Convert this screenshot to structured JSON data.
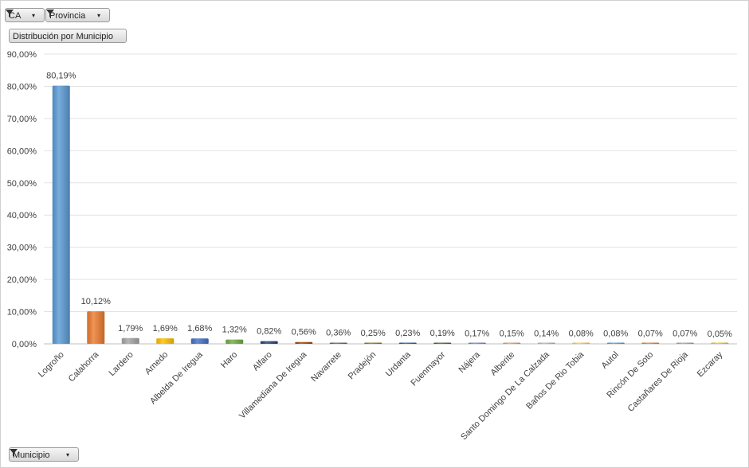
{
  "filters": {
    "ca_label": "CA",
    "provincia_label": "Provincia",
    "measure_label": "Distribución por Municipio",
    "axis_field_label": "Municipio"
  },
  "chart_data": {
    "type": "bar",
    "title": "",
    "xlabel": "",
    "ylabel": "",
    "ylim": [
      0,
      90
    ],
    "yticks": [
      "0,00%",
      "10,00%",
      "20,00%",
      "30,00%",
      "40,00%",
      "50,00%",
      "60,00%",
      "70,00%",
      "80,00%",
      "90,00%"
    ],
    "grid": true,
    "legend": "none",
    "categories": [
      "Logroño",
      "Calahorra",
      "Lardero",
      "Arnedo",
      "Albelda De Iregua",
      "Haro",
      "Alfaro",
      "Villamediana De Iregua",
      "Navarrete",
      "Pradejón",
      "Urdanta",
      "Fuenmayor",
      "Nájera",
      "Alberite",
      "Santo Domingo De La Calzada",
      "Baños De Rio Tobia",
      "Autol",
      "Rincón De Soto",
      "Castañares De Rioja",
      "Ezcaray"
    ],
    "values": [
      80.19,
      10.12,
      1.79,
      1.69,
      1.68,
      1.32,
      0.82,
      0.56,
      0.36,
      0.25,
      0.23,
      0.19,
      0.17,
      0.15,
      0.14,
      0.08,
      0.08,
      0.07,
      0.07,
      0.05
    ],
    "labels": [
      "80,19%",
      "10,12%",
      "1,79%",
      "1,69%",
      "1,68%",
      "1,32%",
      "0,82%",
      "0,56%",
      "0,36%",
      "0,25%",
      "0,23%",
      "0,19%",
      "0,17%",
      "0,15%",
      "0,14%",
      "0,08%",
      "0,08%",
      "0,07%",
      "0,07%",
      "0,05%"
    ],
    "colors": [
      "#5b9bd5",
      "#ed7d31",
      "#a5a5a5",
      "#ffc000",
      "#4472c4",
      "#70ad47",
      "#264478",
      "#9e480e",
      "#636363",
      "#997300",
      "#255e91",
      "#43682b",
      "#698ed0",
      "#f1975a",
      "#b7b7b7",
      "#ffcd33",
      "#5b9bd5",
      "#ed7d31",
      "#a5a5a5",
      "#ffc000"
    ]
  }
}
